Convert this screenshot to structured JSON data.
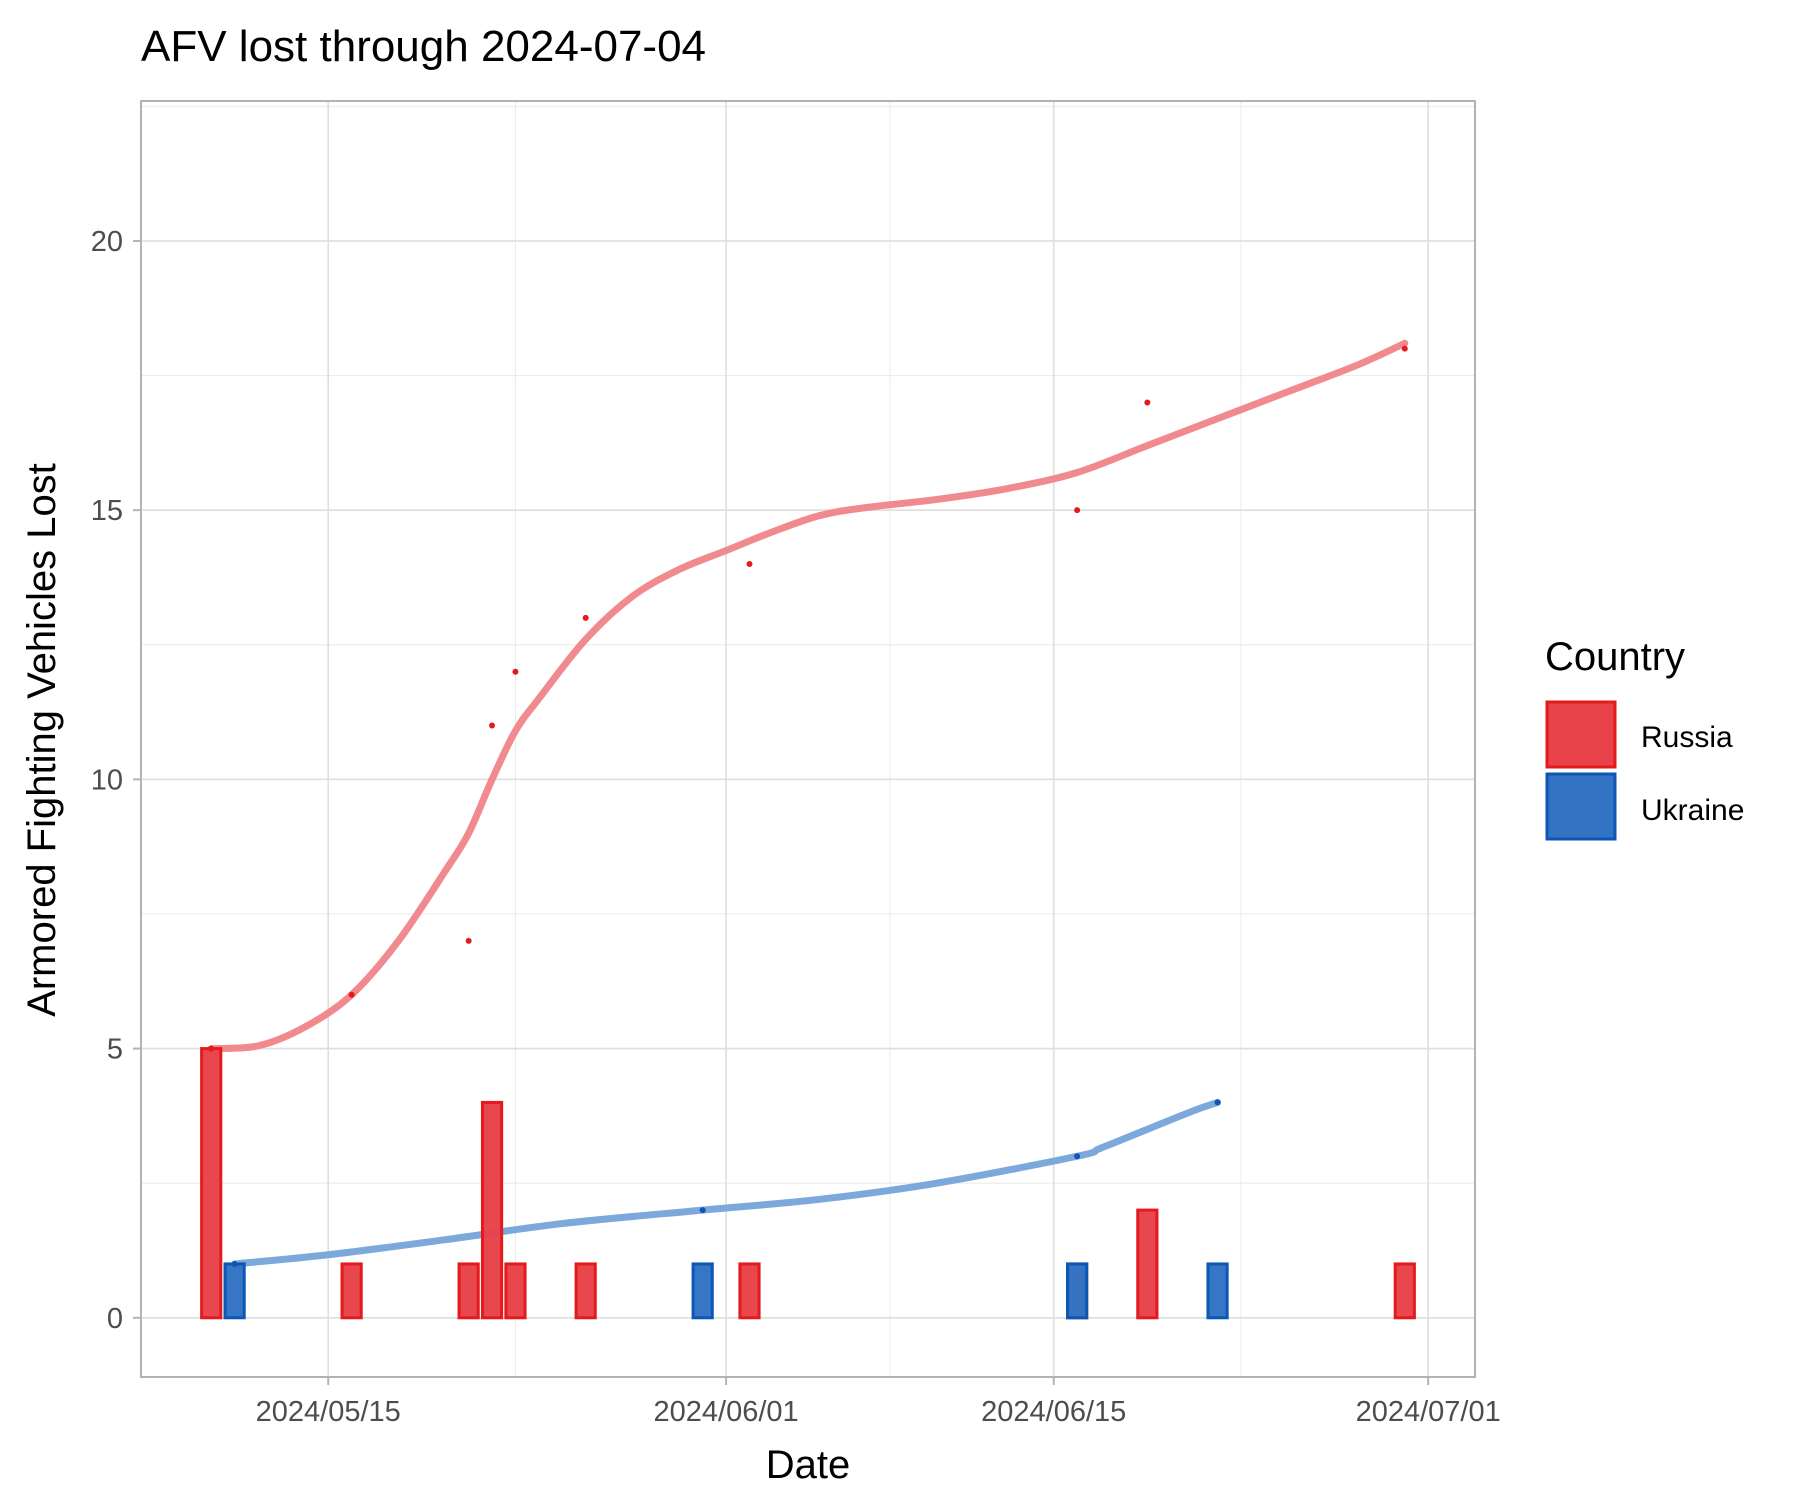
{
  "chart_data": {
    "type": "bar",
    "title": "AFV lost through 2024-07-04",
    "xlabel": "Date",
    "ylabel": "Armored Fighting Vehicles Lost",
    "x_ticks": [
      "2024/05/15",
      "2024/06/01",
      "2024/06/15",
      "2024/07/01"
    ],
    "y_ticks": [
      "0",
      "5",
      "10",
      "15",
      "20"
    ],
    "ylim": [
      -1.1,
      22.6
    ],
    "xlim": [
      "2024-05-07",
      "2024-07-03"
    ],
    "grid": true,
    "legend": {
      "title": "Country",
      "position": "right",
      "entries": [
        {
          "label": "Russia",
          "fill": "#E8434A",
          "stroke": "#E41A1C"
        },
        {
          "label": "Ukraine",
          "fill": "#3373C4",
          "stroke": "#0C57B5"
        }
      ]
    },
    "series": [
      {
        "name": "Russia",
        "color": "#E41A1C",
        "smooth_color": "#F08A8E",
        "daily_losses": [
          {
            "date": "2024-05-10",
            "value": 5
          },
          {
            "date": "2024-05-16",
            "value": 1
          },
          {
            "date": "2024-05-21",
            "value": 1
          },
          {
            "date": "2024-05-22",
            "value": 4
          },
          {
            "date": "2024-05-23",
            "value": 1
          },
          {
            "date": "2024-05-26",
            "value": 1
          },
          {
            "date": "2024-06-02",
            "value": 1
          },
          {
            "date": "2024-06-16",
            "value": 1
          },
          {
            "date": "2024-06-19",
            "value": 2
          },
          {
            "date": "2024-06-30",
            "value": 1
          }
        ],
        "cumulative": [
          {
            "date": "2024-05-10",
            "value": 5
          },
          {
            "date": "2024-05-16",
            "value": 6
          },
          {
            "date": "2024-05-21",
            "value": 7
          },
          {
            "date": "2024-05-22",
            "value": 11
          },
          {
            "date": "2024-05-23",
            "value": 12
          },
          {
            "date": "2024-05-26",
            "value": 13
          },
          {
            "date": "2024-06-02",
            "value": 14
          },
          {
            "date": "2024-06-16",
            "value": 15
          },
          {
            "date": "2024-06-19",
            "value": 17
          },
          {
            "date": "2024-06-30",
            "value": 18
          }
        ],
        "smooth": [
          {
            "date": "2024-05-10",
            "value": 5.0
          },
          {
            "date": "2024-05-12",
            "value": 5.05
          },
          {
            "date": "2024-05-14",
            "value": 5.4
          },
          {
            "date": "2024-05-16",
            "value": 6.0
          },
          {
            "date": "2024-05-18",
            "value": 7.0
          },
          {
            "date": "2024-05-20",
            "value": 8.3
          },
          {
            "date": "2024-05-21",
            "value": 9.0
          },
          {
            "date": "2024-05-22",
            "value": 10.0
          },
          {
            "date": "2024-05-23",
            "value": 10.9
          },
          {
            "date": "2024-05-24",
            "value": 11.5
          },
          {
            "date": "2024-05-26",
            "value": 12.6
          },
          {
            "date": "2024-05-28",
            "value": 13.4
          },
          {
            "date": "2024-05-30",
            "value": 13.9
          },
          {
            "date": "2024-06-01",
            "value": 14.25
          },
          {
            "date": "2024-06-03",
            "value": 14.6
          },
          {
            "date": "2024-06-05",
            "value": 14.9
          },
          {
            "date": "2024-06-07",
            "value": 15.05
          },
          {
            "date": "2024-06-10",
            "value": 15.2
          },
          {
            "date": "2024-06-13",
            "value": 15.4
          },
          {
            "date": "2024-06-16",
            "value": 15.7
          },
          {
            "date": "2024-06-19",
            "value": 16.2
          },
          {
            "date": "2024-06-22",
            "value": 16.7
          },
          {
            "date": "2024-06-25",
            "value": 17.2
          },
          {
            "date": "2024-06-28",
            "value": 17.7
          },
          {
            "date": "2024-06-30",
            "value": 18.1
          }
        ]
      },
      {
        "name": "Ukraine",
        "color": "#0C57B5",
        "smooth_color": "#7DA8DC",
        "daily_losses": [
          {
            "date": "2024-05-11",
            "value": 1
          },
          {
            "date": "2024-05-31",
            "value": 1
          },
          {
            "date": "2024-06-16",
            "value": 1
          },
          {
            "date": "2024-06-22",
            "value": 1
          }
        ],
        "cumulative": [
          {
            "date": "2024-05-11",
            "value": 1
          },
          {
            "date": "2024-05-31",
            "value": 2
          },
          {
            "date": "2024-06-16",
            "value": 3
          },
          {
            "date": "2024-06-22",
            "value": 4
          }
        ],
        "smooth": [
          {
            "date": "2024-05-11",
            "value": 1.0
          },
          {
            "date": "2024-05-15",
            "value": 1.17
          },
          {
            "date": "2024-05-20",
            "value": 1.45
          },
          {
            "date": "2024-05-25",
            "value": 1.75
          },
          {
            "date": "2024-05-31",
            "value": 2.0
          },
          {
            "date": "2024-06-05",
            "value": 2.2
          },
          {
            "date": "2024-06-10",
            "value": 2.5
          },
          {
            "date": "2024-06-16",
            "value": 3.0
          },
          {
            "date": "2024-06-17",
            "value": 3.15
          },
          {
            "date": "2024-06-19",
            "value": 3.5
          },
          {
            "date": "2024-06-21",
            "value": 3.85
          },
          {
            "date": "2024-06-22",
            "value": 4.0
          }
        ]
      }
    ]
  }
}
